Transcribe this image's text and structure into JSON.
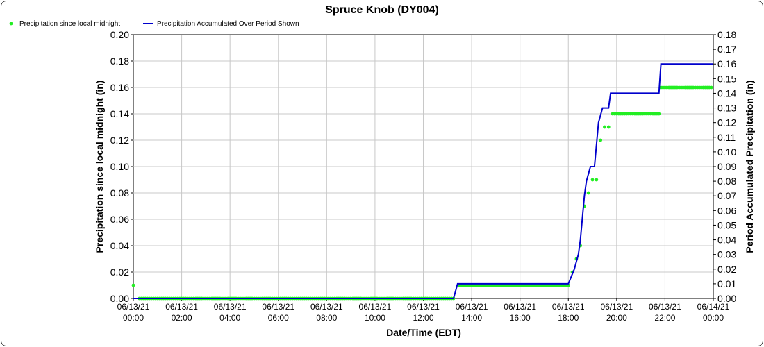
{
  "chart_data": {
    "type": "line",
    "title": "Spruce Knob (DY004)",
    "xlabel": "Date/Time (EDT)",
    "ylabel": "Precipitation since local midnight (in)",
    "y2label": "Period Accumulated Precipitation (in)",
    "grid": true,
    "legend_position": "top-left",
    "x_ticks": [
      {
        "date": "06/13/21",
        "time": "00:00"
      },
      {
        "date": "06/13/21",
        "time": "02:00"
      },
      {
        "date": "06/13/21",
        "time": "04:00"
      },
      {
        "date": "06/13/21",
        "time": "06:00"
      },
      {
        "date": "06/13/21",
        "time": "08:00"
      },
      {
        "date": "06/13/21",
        "time": "10:00"
      },
      {
        "date": "06/13/21",
        "time": "12:00"
      },
      {
        "date": "06/13/21",
        "time": "14:00"
      },
      {
        "date": "06/13/21",
        "time": "16:00"
      },
      {
        "date": "06/13/21",
        "time": "18:00"
      },
      {
        "date": "06/13/21",
        "time": "20:00"
      },
      {
        "date": "06/13/21",
        "time": "22:00"
      },
      {
        "date": "06/14/21",
        "time": "00:00"
      }
    ],
    "x_range": [
      "06/13/21 00:00",
      "06/14/21 00:00"
    ],
    "ylim": [
      0,
      0.2
    ],
    "y_ticks": [
      "0.00",
      "0.02",
      "0.04",
      "0.06",
      "0.08",
      "0.10",
      "0.12",
      "0.14",
      "0.16",
      "0.18",
      "0.20"
    ],
    "y2lim": [
      0,
      0.18
    ],
    "y2_ticks": [
      "0.00",
      "0.01",
      "0.02",
      "0.03",
      "0.04",
      "0.05",
      "0.06",
      "0.07",
      "0.08",
      "0.09",
      "0.10",
      "0.11",
      "0.12",
      "0.13",
      "0.14",
      "0.15",
      "0.16",
      "0.17",
      "0.18"
    ],
    "series": [
      {
        "name": "Precipitation since local midnight",
        "kind": "points",
        "axis": "left",
        "color": "#22ee22",
        "segments": [
          {
            "from": "00:00",
            "to": "00:00",
            "value": 0.01
          },
          {
            "from": "00:15",
            "to": "13:15",
            "value": 0.0
          },
          {
            "from": "13:30",
            "to": "18:00",
            "value": 0.01
          }
        ],
        "points": [
          {
            "x": "18:10",
            "y": 0.02
          },
          {
            "x": "18:20",
            "y": 0.03
          },
          {
            "x": "18:30",
            "y": 0.04
          },
          {
            "x": "18:40",
            "y": 0.07
          },
          {
            "x": "18:50",
            "y": 0.08
          },
          {
            "x": "19:00",
            "y": 0.09
          },
          {
            "x": "19:10",
            "y": 0.09
          },
          {
            "x": "19:20",
            "y": 0.12
          },
          {
            "x": "19:30",
            "y": 0.13
          },
          {
            "x": "19:40",
            "y": 0.13
          }
        ],
        "segments_after": [
          {
            "from": "19:50",
            "to": "21:45",
            "value": 0.14
          },
          {
            "from": "21:50",
            "to": "23:59",
            "value": 0.16
          }
        ]
      },
      {
        "name": "Precipitation Accumulated Over Period Shown",
        "kind": "line",
        "axis": "right",
        "color": "#0000cc",
        "x": [
          "00:00",
          "13:15",
          "13:25",
          "18:00",
          "18:15",
          "18:25",
          "18:30",
          "18:40",
          "18:45",
          "18:55",
          "19:05",
          "19:15",
          "19:25",
          "19:30",
          "19:35",
          "19:40",
          "19:45",
          "19:55",
          "21:45",
          "21:50",
          "23:59"
        ],
        "y": [
          0.0,
          0.0,
          0.01,
          0.01,
          0.02,
          0.03,
          0.04,
          0.07,
          0.08,
          0.09,
          0.09,
          0.12,
          0.13,
          0.13,
          0.13,
          0.13,
          0.14,
          0.14,
          0.14,
          0.16,
          0.16
        ]
      }
    ]
  }
}
